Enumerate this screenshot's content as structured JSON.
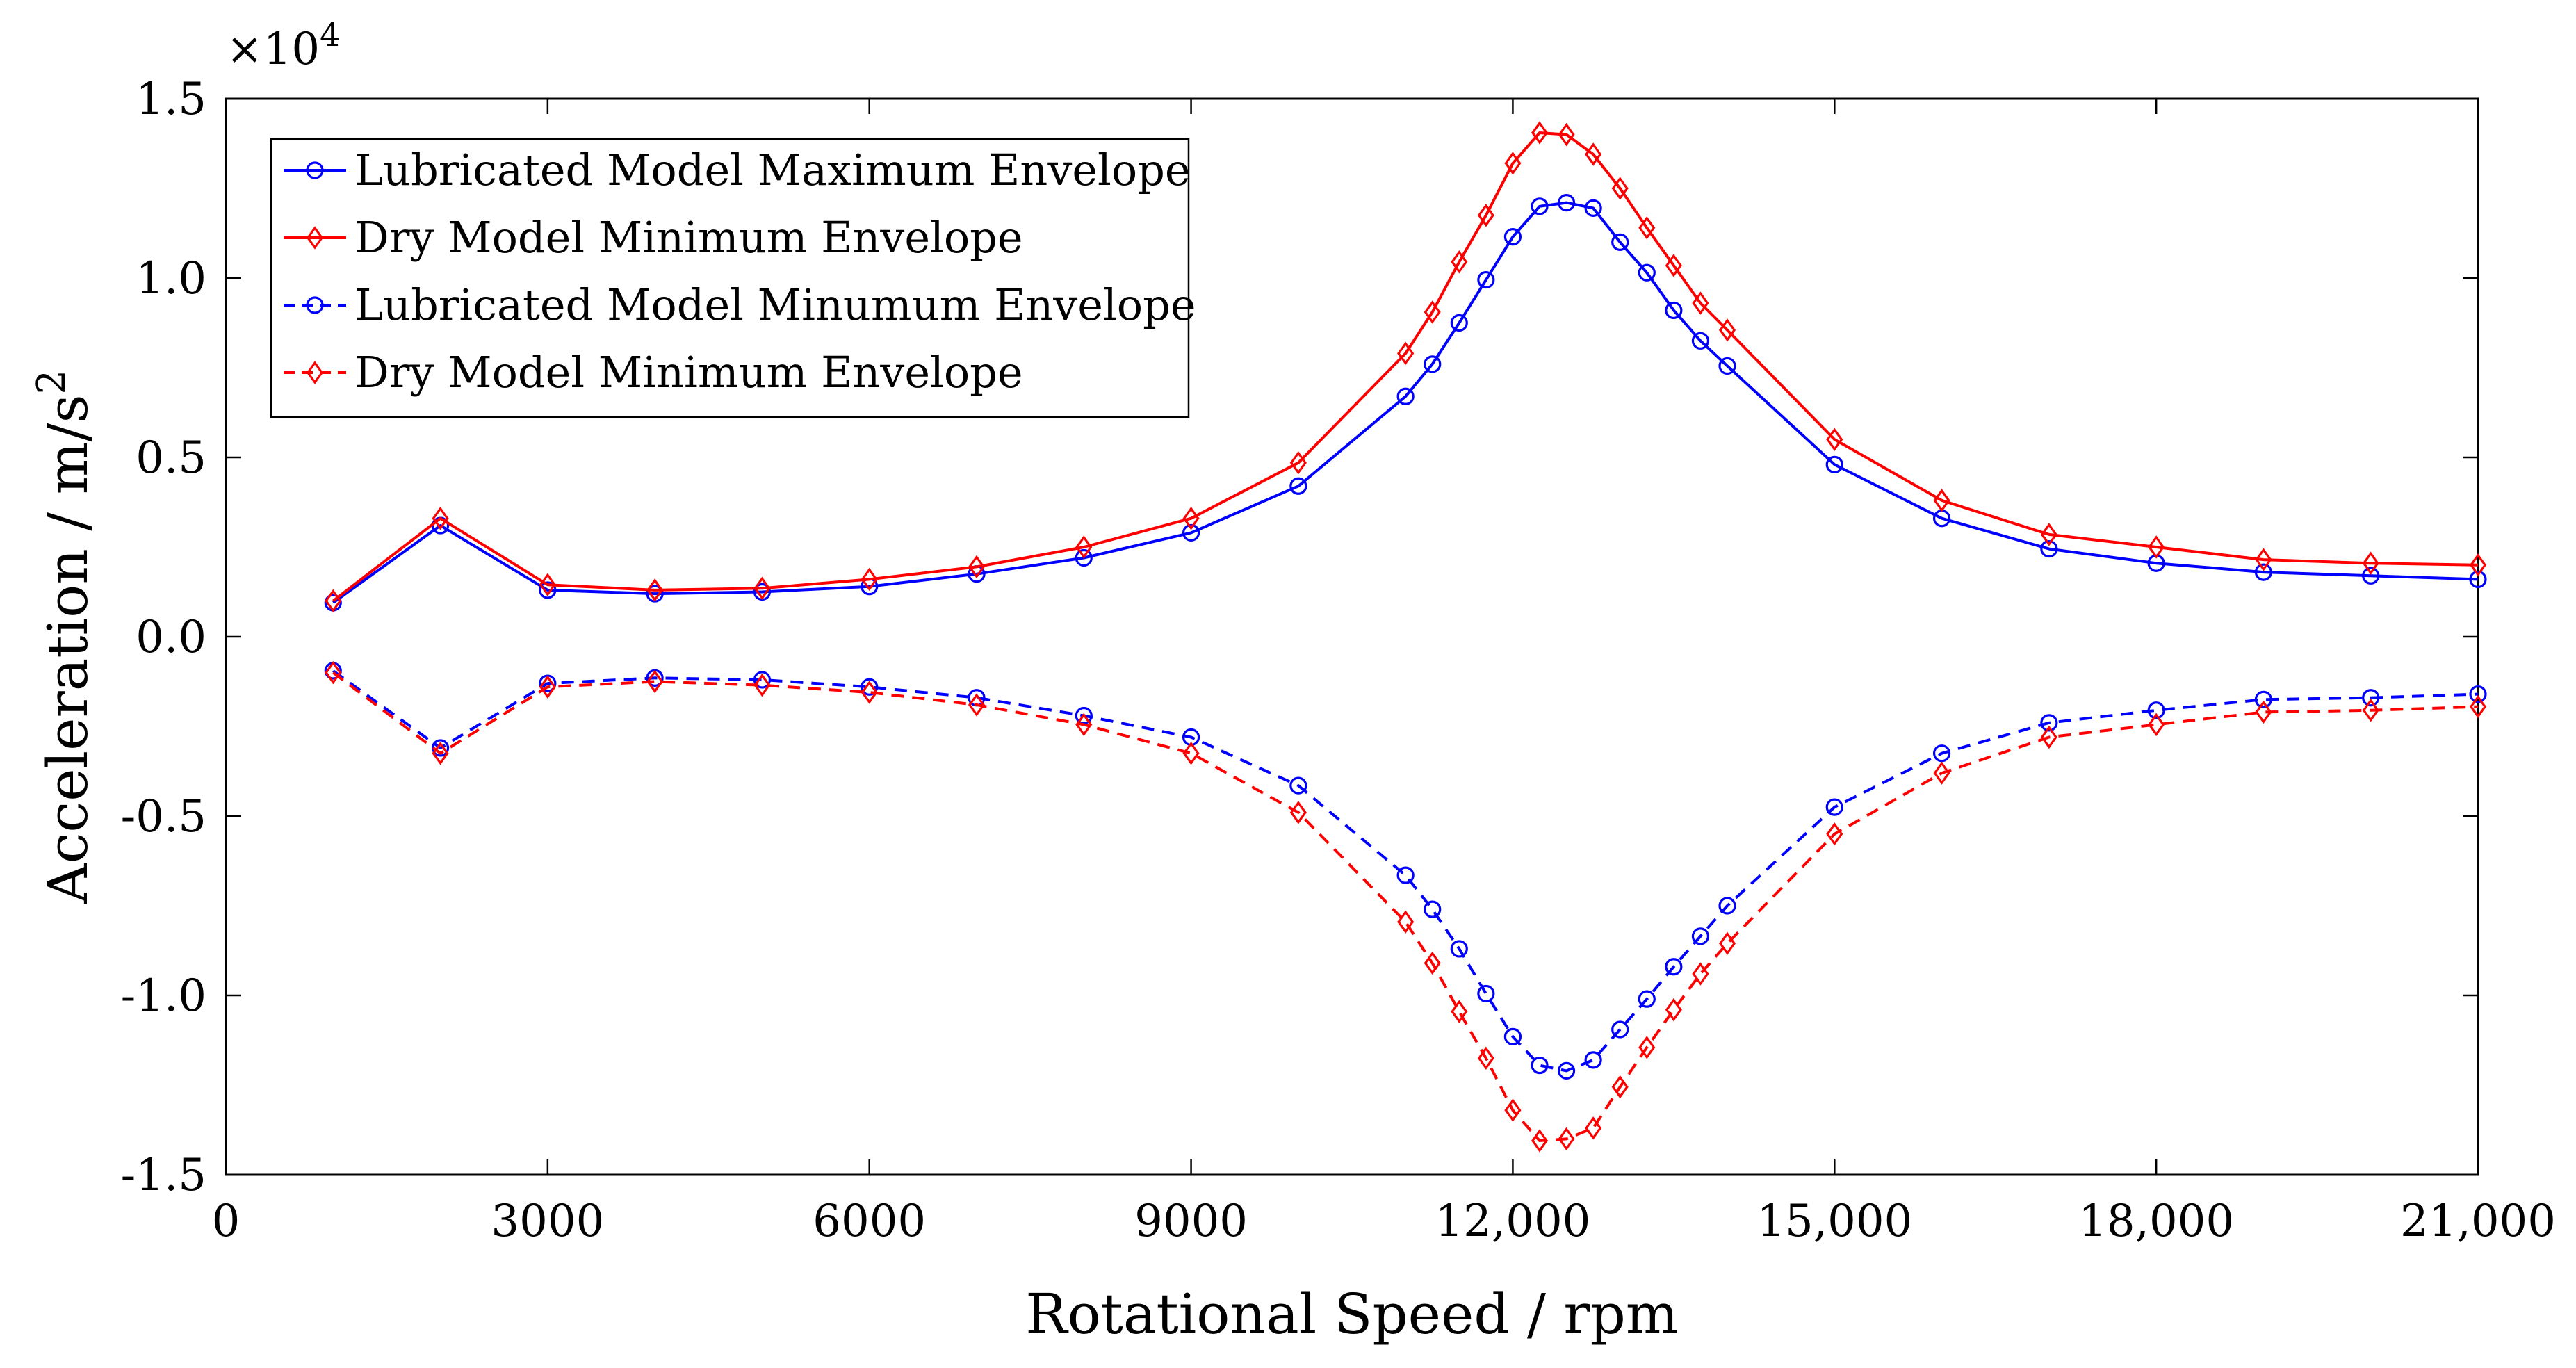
{
  "chart_data": {
    "type": "line",
    "title": "",
    "xlabel": "Rotational Speed / rpm",
    "ylabel_text": "Acceleration / m/s",
    "ylabel_superscript": "2",
    "y_multiplier_base": "×10",
    "y_multiplier_exponent": "4",
    "xlim": [
      0,
      21000
    ],
    "ylim": [
      -1.5,
      1.5
    ],
    "x_ticks": [
      0,
      3000,
      6000,
      9000,
      12000,
      15000,
      18000,
      21000
    ],
    "x_tick_labels": [
      "0",
      "3000",
      "6000",
      "9000",
      "12,000",
      "15,000",
      "18,000",
      "21,000"
    ],
    "y_ticks": [
      -1.5,
      -1.0,
      -0.5,
      0.0,
      0.5,
      1.0,
      1.5
    ],
    "y_tick_labels": [
      "-1.5",
      "-1.0",
      "-0.5",
      "0.0",
      "0.5",
      "1.0",
      "1.5"
    ],
    "grid": false,
    "legend_position": "top-left",
    "series": [
      {
        "name": "Lubricated Model Maximum Envelope",
        "color": "#0000ff",
        "line_style": "solid",
        "marker": "circle",
        "x": [
          1000,
          2000,
          3000,
          4000,
          5000,
          6000,
          7000,
          8000,
          9000,
          10000,
          11000,
          11250,
          11500,
          11750,
          12000,
          12250,
          12500,
          12750,
          13000,
          13250,
          13500,
          13750,
          14000,
          15000,
          16000,
          17000,
          18000,
          19000,
          20000,
          21000
        ],
        "y": [
          0.095,
          0.31,
          0.13,
          0.12,
          0.125,
          0.14,
          0.175,
          0.22,
          0.29,
          0.42,
          0.67,
          0.76,
          0.875,
          0.995,
          1.115,
          1.2,
          1.21,
          1.195,
          1.1,
          1.015,
          0.91,
          0.825,
          0.755,
          0.48,
          0.33,
          0.245,
          0.205,
          0.18,
          0.17,
          0.16
        ]
      },
      {
        "name": "Dry Model Minimum Envelope",
        "color": "#ff0000",
        "line_style": "solid",
        "marker": "diamond",
        "x": [
          1000,
          2000,
          3000,
          4000,
          5000,
          6000,
          7000,
          8000,
          9000,
          10000,
          11000,
          11250,
          11500,
          11750,
          12000,
          12250,
          12500,
          12750,
          13000,
          13250,
          13500,
          13750,
          14000,
          15000,
          16000,
          17000,
          18000,
          19000,
          20000,
          21000
        ],
        "y": [
          0.1,
          0.33,
          0.145,
          0.13,
          0.135,
          0.16,
          0.195,
          0.25,
          0.33,
          0.485,
          0.79,
          0.905,
          1.045,
          1.175,
          1.32,
          1.405,
          1.4,
          1.345,
          1.25,
          1.14,
          1.035,
          0.93,
          0.855,
          0.55,
          0.38,
          0.285,
          0.25,
          0.215,
          0.205,
          0.2
        ]
      },
      {
        "name": "Lubricated Model Minumum Envelope",
        "color": "#0000ff",
        "line_style": "dashed",
        "marker": "circle",
        "x": [
          1000,
          2000,
          3000,
          4000,
          5000,
          6000,
          7000,
          8000,
          9000,
          10000,
          11000,
          11250,
          11500,
          11750,
          12000,
          12250,
          12500,
          12750,
          13000,
          13250,
          13500,
          13750,
          14000,
          15000,
          16000,
          17000,
          18000,
          19000,
          20000,
          21000
        ],
        "y": [
          -0.095,
          -0.31,
          -0.13,
          -0.115,
          -0.12,
          -0.14,
          -0.17,
          -0.22,
          -0.28,
          -0.415,
          -0.665,
          -0.76,
          -0.87,
          -0.995,
          -1.115,
          -1.195,
          -1.21,
          -1.18,
          -1.095,
          -1.01,
          -0.92,
          -0.835,
          -0.75,
          -0.475,
          -0.325,
          -0.24,
          -0.205,
          -0.175,
          -0.17,
          -0.16
        ]
      },
      {
        "name": "Dry Model Minimum Envelope",
        "color": "#ff0000",
        "line_style": "dashed",
        "marker": "diamond",
        "x": [
          1000,
          2000,
          3000,
          4000,
          5000,
          6000,
          7000,
          8000,
          9000,
          10000,
          11000,
          11250,
          11500,
          11750,
          12000,
          12250,
          12500,
          12750,
          13000,
          13250,
          13500,
          13750,
          14000,
          15000,
          16000,
          17000,
          18000,
          19000,
          20000,
          21000
        ],
        "y": [
          -0.1,
          -0.325,
          -0.14,
          -0.125,
          -0.135,
          -0.155,
          -0.19,
          -0.245,
          -0.325,
          -0.49,
          -0.795,
          -0.91,
          -1.045,
          -1.175,
          -1.32,
          -1.405,
          -1.4,
          -1.37,
          -1.255,
          -1.145,
          -1.04,
          -0.94,
          -0.855,
          -0.55,
          -0.38,
          -0.28,
          -0.245,
          -0.21,
          -0.205,
          -0.195
        ]
      }
    ]
  }
}
